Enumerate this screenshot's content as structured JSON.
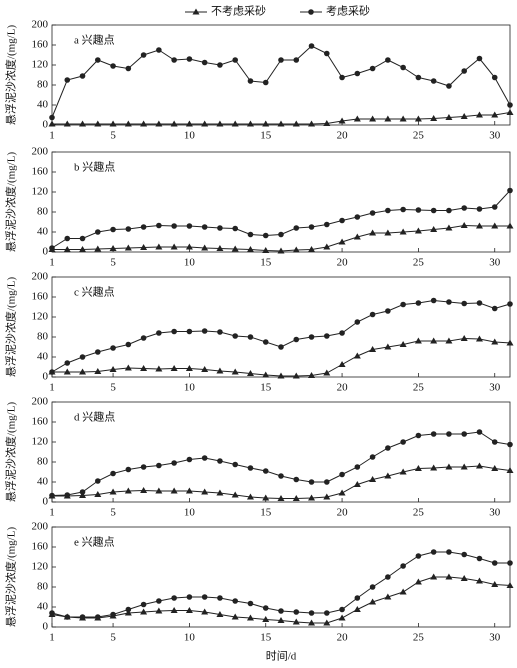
{
  "chart_data": [
    {
      "type": "line",
      "title": "a 兴趣点",
      "ylabel": "悬浮泥沙浓度/(mg/L)",
      "x": [
        1,
        2,
        3,
        4,
        5,
        6,
        7,
        8,
        9,
        10,
        11,
        12,
        13,
        14,
        15,
        16,
        17,
        18,
        19,
        20,
        21,
        22,
        23,
        24,
        25,
        26,
        27,
        28,
        29,
        30,
        31
      ],
      "series": [
        {
          "name": "不考虑采砂",
          "color": "#222222",
          "marker": "triangle",
          "values": [
            2,
            2,
            2,
            2,
            2,
            2,
            2,
            2,
            2,
            2,
            2,
            2,
            2,
            2,
            2,
            2,
            2,
            2,
            3,
            8,
            12,
            12,
            12,
            12,
            12,
            13,
            15,
            17,
            20,
            20,
            25
          ]
        },
        {
          "name": "考虑采砂",
          "color": "#222222",
          "marker": "circle",
          "values": [
            15,
            90,
            98,
            130,
            118,
            113,
            140,
            150,
            130,
            132,
            125,
            120,
            130,
            88,
            85,
            130,
            130,
            158,
            143,
            95,
            103,
            113,
            130,
            115,
            95,
            88,
            78,
            108,
            133,
            95,
            40
          ]
        }
      ],
      "xlim": [
        1,
        31
      ],
      "xticks": [
        1,
        5,
        10,
        15,
        20,
        25,
        30
      ],
      "ylim": [
        0,
        200
      ],
      "yticks": [
        0,
        40,
        80,
        120,
        160,
        200
      ]
    },
    {
      "type": "line",
      "title": "b 兴趣点",
      "ylabel": "悬浮泥沙浓度/(mg/L)",
      "x": [
        1,
        2,
        3,
        4,
        5,
        6,
        7,
        8,
        9,
        10,
        11,
        12,
        13,
        14,
        15,
        16,
        17,
        18,
        19,
        20,
        21,
        22,
        23,
        24,
        25,
        26,
        27,
        28,
        29,
        30,
        31
      ],
      "series": [
        {
          "name": "不考虑采砂",
          "color": "#222222",
          "marker": "triangle",
          "values": [
            5,
            5,
            5,
            6,
            7,
            8,
            9,
            10,
            10,
            10,
            8,
            7,
            6,
            5,
            3,
            2,
            4,
            5,
            10,
            20,
            30,
            38,
            38,
            40,
            42,
            45,
            48,
            53,
            52,
            52,
            52
          ]
        },
        {
          "name": "考虑采砂",
          "color": "#222222",
          "marker": "circle",
          "values": [
            8,
            27,
            27,
            40,
            45,
            46,
            50,
            53,
            52,
            52,
            50,
            48,
            47,
            35,
            33,
            35,
            48,
            50,
            55,
            63,
            70,
            78,
            83,
            85,
            84,
            83,
            83,
            88,
            86,
            90,
            123
          ]
        }
      ],
      "xlim": [
        1,
        31
      ],
      "xticks": [
        1,
        5,
        10,
        15,
        20,
        25,
        30
      ],
      "ylim": [
        0,
        200
      ],
      "yticks": [
        0,
        40,
        80,
        120,
        160,
        200
      ]
    },
    {
      "type": "line",
      "title": "c 兴趣点",
      "ylabel": "悬浮泥沙浓度/(mg/L)",
      "x": [
        1,
        2,
        3,
        4,
        5,
        6,
        7,
        8,
        9,
        10,
        11,
        12,
        13,
        14,
        15,
        16,
        17,
        18,
        19,
        20,
        21,
        22,
        23,
        24,
        25,
        26,
        27,
        28,
        29,
        30,
        31
      ],
      "series": [
        {
          "name": "不考虑采砂",
          "color": "#222222",
          "marker": "triangle",
          "values": [
            10,
            10,
            10,
            11,
            15,
            18,
            17,
            16,
            17,
            17,
            15,
            12,
            10,
            7,
            4,
            2,
            2,
            3,
            8,
            25,
            42,
            55,
            60,
            65,
            72,
            72,
            72,
            77,
            76,
            70,
            68
          ]
        },
        {
          "name": "考虑采砂",
          "color": "#222222",
          "marker": "circle",
          "values": [
            10,
            28,
            40,
            50,
            58,
            65,
            78,
            88,
            91,
            91,
            92,
            90,
            82,
            80,
            70,
            60,
            75,
            80,
            82,
            88,
            110,
            125,
            132,
            145,
            148,
            153,
            150,
            147,
            148,
            137,
            146
          ]
        }
      ],
      "xlim": [
        1,
        31
      ],
      "xticks": [
        1,
        5,
        10,
        15,
        20,
        25,
        30
      ],
      "ylim": [
        0,
        200
      ],
      "yticks": [
        0,
        40,
        80,
        120,
        160,
        200
      ]
    },
    {
      "type": "line",
      "title": "d 兴趣点",
      "ylabel": "悬浮泥沙浓度/(mg/L)",
      "x": [
        1,
        2,
        3,
        4,
        5,
        6,
        7,
        8,
        9,
        10,
        11,
        12,
        13,
        14,
        15,
        16,
        17,
        18,
        19,
        20,
        21,
        22,
        23,
        24,
        25,
        26,
        27,
        28,
        29,
        30,
        31
      ],
      "series": [
        {
          "name": "不考虑采砂",
          "color": "#222222",
          "marker": "triangle",
          "values": [
            12,
            12,
            13,
            15,
            20,
            22,
            23,
            22,
            22,
            22,
            20,
            18,
            14,
            10,
            8,
            7,
            7,
            8,
            10,
            18,
            35,
            45,
            52,
            60,
            67,
            68,
            70,
            70,
            72,
            67,
            63
          ]
        },
        {
          "name": "考虑采砂",
          "color": "#222222",
          "marker": "circle",
          "values": [
            13,
            14,
            20,
            42,
            57,
            65,
            70,
            73,
            78,
            85,
            88,
            82,
            75,
            68,
            62,
            52,
            45,
            40,
            40,
            55,
            70,
            90,
            108,
            120,
            133,
            136,
            136,
            136,
            140,
            120,
            115
          ]
        }
      ],
      "xlim": [
        1,
        31
      ],
      "xticks": [
        1,
        5,
        10,
        15,
        20,
        25,
        30
      ],
      "ylim": [
        0,
        200
      ],
      "yticks": [
        0,
        40,
        80,
        120,
        160,
        200
      ]
    },
    {
      "type": "line",
      "title": "e 兴趣点",
      "ylabel": "悬浮泥沙浓度/(mg/L)",
      "xlabel": "时间/d",
      "x": [
        1,
        2,
        3,
        4,
        5,
        6,
        7,
        8,
        9,
        10,
        11,
        12,
        13,
        14,
        15,
        16,
        17,
        18,
        19,
        20,
        21,
        22,
        23,
        24,
        25,
        26,
        27,
        28,
        29,
        30,
        31
      ],
      "series": [
        {
          "name": "不考虑采砂",
          "color": "#222222",
          "marker": "triangle",
          "values": [
            25,
            20,
            18,
            18,
            22,
            28,
            30,
            32,
            33,
            33,
            30,
            25,
            20,
            18,
            15,
            13,
            10,
            8,
            8,
            18,
            35,
            50,
            60,
            70,
            90,
            100,
            100,
            97,
            92,
            85,
            83
          ]
        },
        {
          "name": "考虑采砂",
          "color": "#222222",
          "marker": "circle",
          "values": [
            28,
            20,
            20,
            20,
            25,
            35,
            45,
            52,
            58,
            60,
            60,
            58,
            52,
            47,
            38,
            32,
            30,
            28,
            28,
            35,
            58,
            80,
            100,
            122,
            142,
            150,
            150,
            145,
            137,
            128,
            128
          ]
        }
      ],
      "xlim": [
        1,
        31
      ],
      "xticks": [
        1,
        5,
        10,
        15,
        20,
        25,
        30
      ],
      "ylim": [
        0,
        200
      ],
      "yticks": [
        0,
        40,
        80,
        120,
        160,
        200
      ]
    }
  ]
}
